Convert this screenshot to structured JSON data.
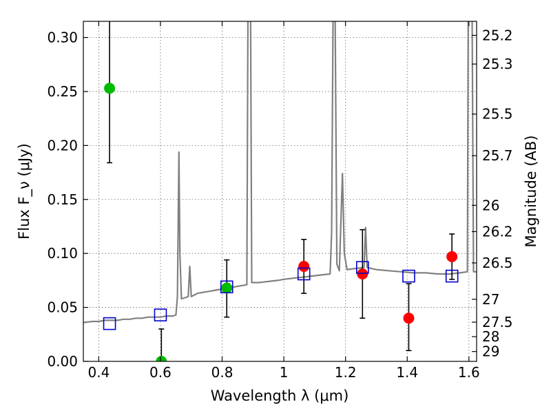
{
  "chart_data": {
    "type": "scatter",
    "xlabel": "Wavelength λ (μm)",
    "ylabel": "Flux F_ν (μJy)",
    "ylabel_right": "Magnitude (AB)",
    "xlim": [
      0.35,
      1.625
    ],
    "ylim": [
      0.0,
      0.315
    ],
    "grid": true,
    "x_ticks": [
      {
        "value": 0.4,
        "label": "0.4"
      },
      {
        "value": 0.6,
        "label": "0.6"
      },
      {
        "value": 0.8,
        "label": "0.8"
      },
      {
        "value": 1.0,
        "label": "1"
      },
      {
        "value": 1.2,
        "label": "1.2"
      },
      {
        "value": 1.4,
        "label": "1.4"
      },
      {
        "value": 1.6,
        "label": "1.6"
      }
    ],
    "y_ticks": [
      {
        "value": 0.0,
        "label": "0.00"
      },
      {
        "value": 0.05,
        "label": "0.05"
      },
      {
        "value": 0.1,
        "label": "0.10"
      },
      {
        "value": 0.15,
        "label": "0.15"
      },
      {
        "value": 0.2,
        "label": "0.20"
      },
      {
        "value": 0.25,
        "label": "0.25"
      },
      {
        "value": 0.3,
        "label": "0.30"
      }
    ],
    "mag_ticks": [
      {
        "label": "25.2"
      },
      {
        "label": "25.3"
      },
      {
        "label": "25.5"
      },
      {
        "label": "25.7"
      },
      {
        "label": "26"
      },
      {
        "label": "26.2"
      },
      {
        "label": "26.5"
      },
      {
        "label": "27"
      },
      {
        "label": "27.5"
      },
      {
        "label": "28"
      },
      {
        "label": "29"
      }
    ],
    "model_spectrum": {
      "color": "#808080",
      "points": [
        [
          0.35,
          0.036
        ],
        [
          0.38,
          0.037
        ],
        [
          0.4,
          0.037
        ],
        [
          0.42,
          0.038
        ],
        [
          0.44,
          0.038
        ],
        [
          0.46,
          0.038
        ],
        [
          0.48,
          0.039
        ],
        [
          0.5,
          0.039
        ],
        [
          0.52,
          0.04
        ],
        [
          0.54,
          0.04
        ],
        [
          0.56,
          0.041
        ],
        [
          0.58,
          0.041
        ],
        [
          0.6,
          0.041
        ],
        [
          0.62,
          0.042
        ],
        [
          0.64,
          0.042
        ],
        [
          0.65,
          0.043
        ],
        [
          0.655,
          0.06
        ],
        [
          0.66,
          0.194
        ],
        [
          0.663,
          0.1
        ],
        [
          0.668,
          0.058
        ],
        [
          0.68,
          0.059
        ],
        [
          0.69,
          0.06
        ],
        [
          0.695,
          0.088
        ],
        [
          0.7,
          0.06
        ],
        [
          0.72,
          0.063
        ],
        [
          0.74,
          0.064
        ],
        [
          0.76,
          0.065
        ],
        [
          0.78,
          0.066
        ],
        [
          0.8,
          0.067
        ],
        [
          0.82,
          0.068
        ],
        [
          0.84,
          0.069
        ],
        [
          0.86,
          0.07
        ],
        [
          0.88,
          0.071
        ],
        [
          0.884,
          0.34
        ],
        [
          0.892,
          0.34
        ],
        [
          0.896,
          0.073
        ],
        [
          0.92,
          0.073
        ],
        [
          0.95,
          0.074
        ],
        [
          0.98,
          0.075
        ],
        [
          1.0,
          0.076
        ],
        [
          1.03,
          0.077
        ],
        [
          1.06,
          0.078
        ],
        [
          1.09,
          0.079
        ],
        [
          1.12,
          0.08
        ],
        [
          1.15,
          0.081
        ],
        [
          1.155,
          0.12
        ],
        [
          1.16,
          0.34
        ],
        [
          1.166,
          0.34
        ],
        [
          1.172,
          0.09
        ],
        [
          1.18,
          0.084
        ],
        [
          1.19,
          0.174
        ],
        [
          1.196,
          0.1
        ],
        [
          1.205,
          0.085
        ],
        [
          1.23,
          0.086
        ],
        [
          1.26,
          0.087
        ],
        [
          1.265,
          0.124
        ],
        [
          1.27,
          0.087
        ],
        [
          1.3,
          0.085
        ],
        [
          1.34,
          0.084
        ],
        [
          1.38,
          0.083
        ],
        [
          1.42,
          0.082
        ],
        [
          1.46,
          0.082
        ],
        [
          1.5,
          0.081
        ],
        [
          1.54,
          0.081
        ],
        [
          1.57,
          0.082
        ],
        [
          1.595,
          0.083
        ],
        [
          1.598,
          0.34
        ],
        [
          1.61,
          0.34
        ],
        [
          1.615,
          0.083
        ],
        [
          1.625,
          0.083
        ]
      ]
    },
    "series": [
      {
        "marker": "circle",
        "color": "#00bb00",
        "points": [
          {
            "x": 0.435,
            "y": 0.253,
            "yerr_low": 0.069,
            "yerr_high": 0.07
          },
          {
            "x": 0.603,
            "y": 0.0,
            "yerr_low": 0.0,
            "yerr_high": 0.03
          },
          {
            "x": 0.815,
            "y": 0.068,
            "yerr_low": 0.027,
            "yerr_high": 0.026
          }
        ]
      },
      {
        "marker": "circle",
        "color": "#ff0000",
        "points": [
          {
            "x": 1.065,
            "y": 0.088,
            "yerr_low": 0.025,
            "yerr_high": 0.025
          },
          {
            "x": 1.255,
            "y": 0.081,
            "yerr_low": 0.041,
            "yerr_high": 0.041
          },
          {
            "x": 1.405,
            "y": 0.04,
            "yerr_low": 0.03,
            "yerr_high": 0.032
          },
          {
            "x": 1.545,
            "y": 0.097,
            "yerr_low": 0.021,
            "yerr_high": 0.021
          }
        ]
      },
      {
        "marker": "open-square",
        "color": "#0000cc",
        "points": [
          {
            "x": 0.435,
            "y": 0.035
          },
          {
            "x": 0.6,
            "y": 0.043
          },
          {
            "x": 0.815,
            "y": 0.069
          },
          {
            "x": 1.065,
            "y": 0.081
          },
          {
            "x": 1.255,
            "y": 0.087
          },
          {
            "x": 1.405,
            "y": 0.079
          },
          {
            "x": 1.545,
            "y": 0.079
          }
        ]
      }
    ]
  }
}
